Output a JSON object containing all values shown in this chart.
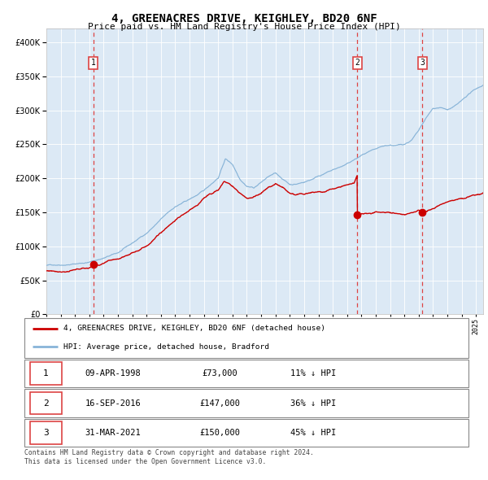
{
  "title1": "4, GREENACRES DRIVE, KEIGHLEY, BD20 6NF",
  "title2": "Price paid vs. HM Land Registry's House Price Index (HPI)",
  "bg_color": "#dce9f5",
  "sale1_date": 1998.27,
  "sale1_price": 73000,
  "sale2_date": 2016.71,
  "sale2_price": 147000,
  "sale3_date": 2021.25,
  "sale3_price": 150000,
  "legend_line1": "4, GREENACRES DRIVE, KEIGHLEY, BD20 6NF (detached house)",
  "legend_line2": "HPI: Average price, detached house, Bradford",
  "table_rows": [
    [
      "1",
      "09-APR-1998",
      "£73,000",
      "11% ↓ HPI"
    ],
    [
      "2",
      "16-SEP-2016",
      "£147,000",
      "36% ↓ HPI"
    ],
    [
      "3",
      "31-MAR-2021",
      "£150,000",
      "45% ↓ HPI"
    ]
  ],
  "footer": "Contains HM Land Registry data © Crown copyright and database right 2024.\nThis data is licensed under the Open Government Licence v3.0.",
  "ylim": [
    0,
    420000
  ],
  "xlim_start": 1995.0,
  "xlim_end": 2025.5,
  "red_color": "#cc0000",
  "blue_color": "#88b4d8",
  "vline_color": "#dd4444"
}
